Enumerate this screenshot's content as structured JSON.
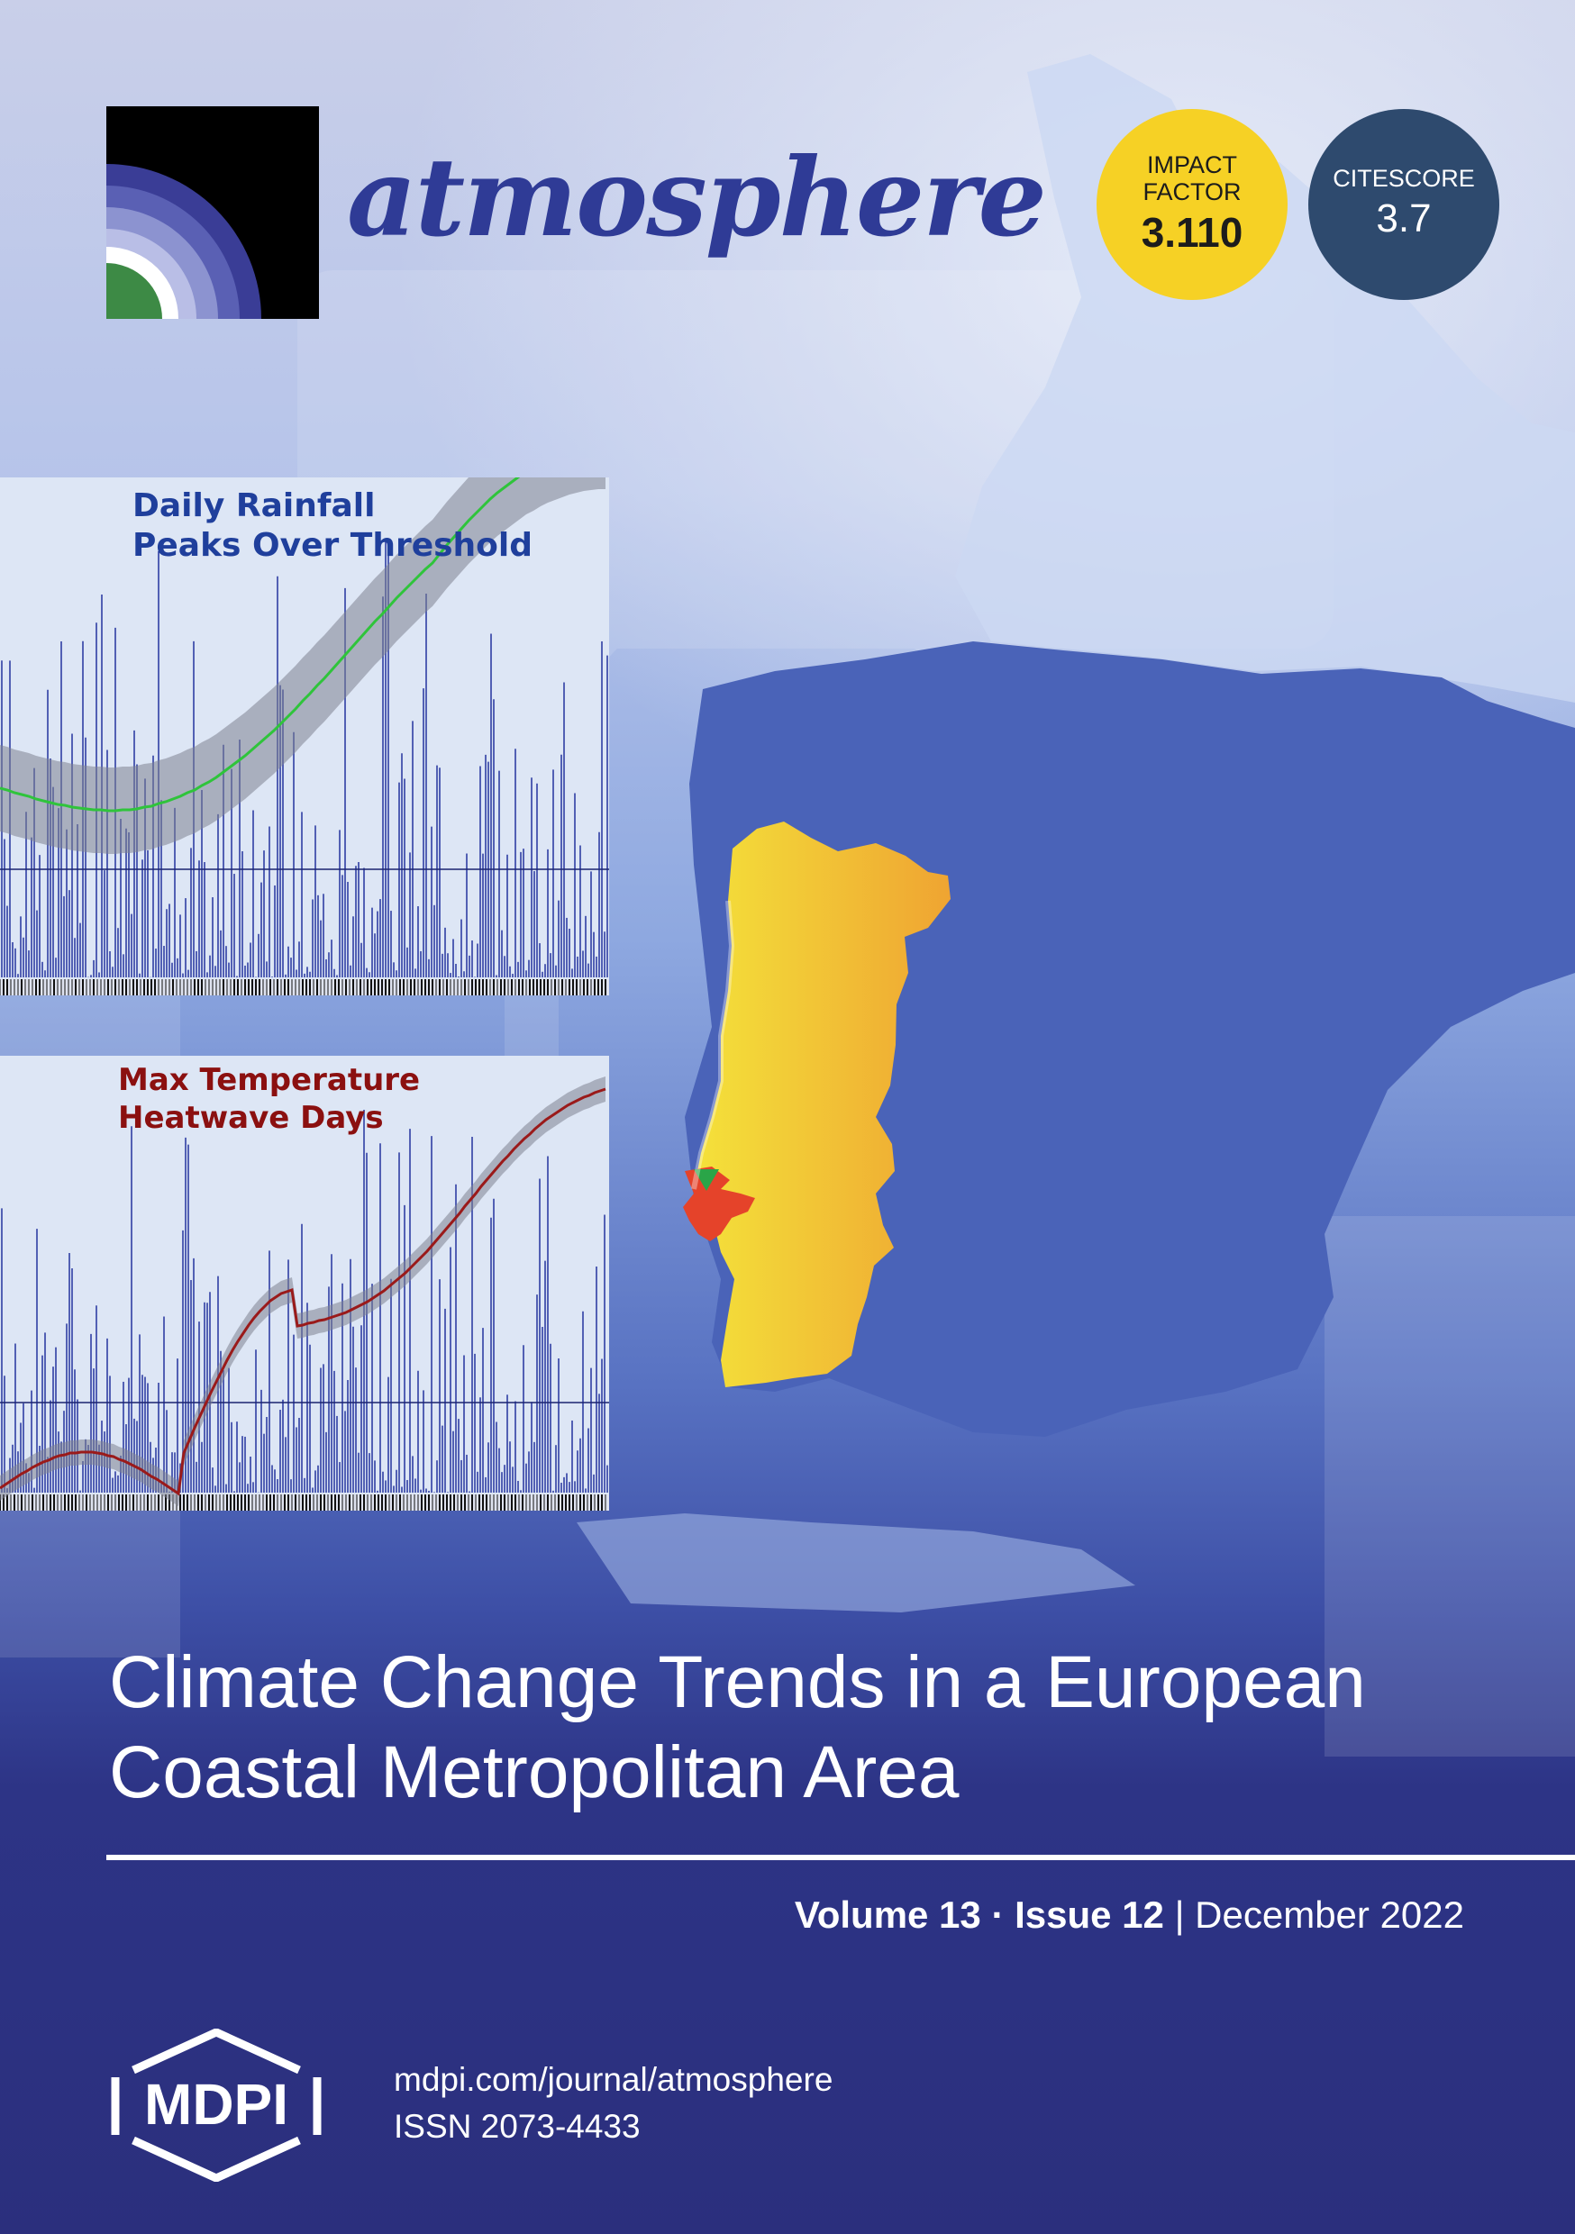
{
  "journal": {
    "title": "atmosphere"
  },
  "badges": {
    "impact_factor": {
      "label": "IMPACT FACTOR",
      "value": "3.110"
    },
    "citescore": {
      "label": "CITESCORE",
      "value": "3.7"
    }
  },
  "figures": {
    "rainfall": {
      "title_line1": "Daily Rainfall",
      "title_line2": "Peaks Over Threshold"
    },
    "temperature": {
      "title_line1": "Max Temperature",
      "title_line2": "Heatwave Days"
    }
  },
  "article": {
    "title": "Climate Change Trends in a European Coastal Metropolitan Area"
  },
  "issue": {
    "volume": "Volume 13",
    "separator": " · ",
    "issue": "Issue 12",
    "divider": " | ",
    "date": "December 2022"
  },
  "publisher": {
    "name": "MDPI",
    "url": "mdpi.com/journal/atmosphere",
    "issn": "ISSN 2073-4433"
  },
  "colors": {
    "badge_impact": "#f6d125",
    "badge_citescore": "#2e4a6e",
    "title_blue": "#2f3b96",
    "portugal": "#f0b032",
    "lisbon": "#e5432a"
  }
}
